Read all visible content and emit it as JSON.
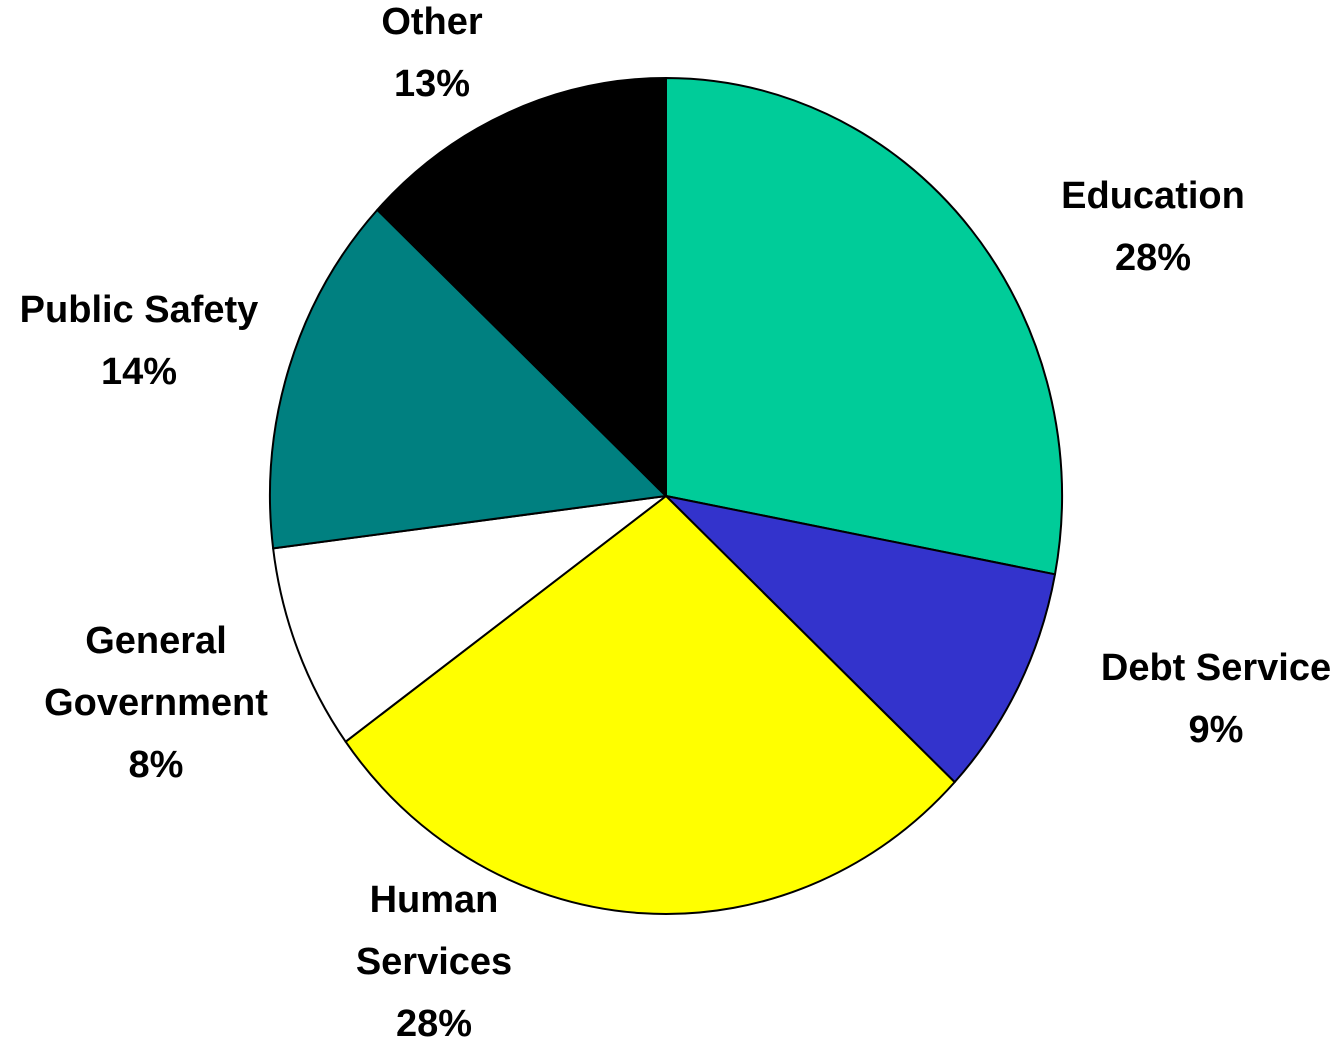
{
  "chart_data": {
    "type": "pie",
    "slices": [
      {
        "label_lines": [
          "Education"
        ],
        "percent_label": "28%",
        "value": 28,
        "color": "#00CC99"
      },
      {
        "label_lines": [
          "Debt Service"
        ],
        "percent_label": "9%",
        "value": 9,
        "color": "#3333CC"
      },
      {
        "label_lines": [
          "Human",
          "Services"
        ],
        "percent_label": "28%",
        "value": 28,
        "color": "#FFFF00"
      },
      {
        "label_lines": [
          "General",
          "Government"
        ],
        "percent_label": "8%",
        "value": 8,
        "color": "#FFFFFF"
      },
      {
        "label_lines": [
          "Public Safety"
        ],
        "percent_label": "14%",
        "value": 14,
        "color": "#008080"
      },
      {
        "label_lines": [
          "Other"
        ],
        "percent_label": "13%",
        "value": 13,
        "color": "#000000"
      }
    ]
  }
}
